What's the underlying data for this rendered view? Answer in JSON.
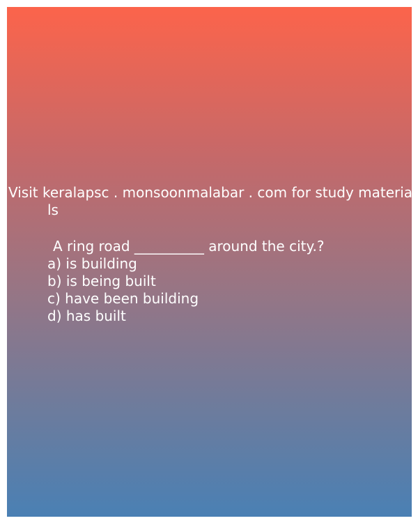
{
  "promo": {
    "line1": "Visit keralapsc . monsoonmalabar . com for study materia",
    "line2": "ls"
  },
  "question": {
    "text": "A ring road __________ around the city.?",
    "options": [
      "a) is building",
      "b) is being built",
      "c) have been building",
      "d) has built"
    ]
  },
  "colors": {
    "gradient_top": "#fc644b",
    "gradient_bottom": "#4a80b4",
    "text": "#ffffff"
  }
}
